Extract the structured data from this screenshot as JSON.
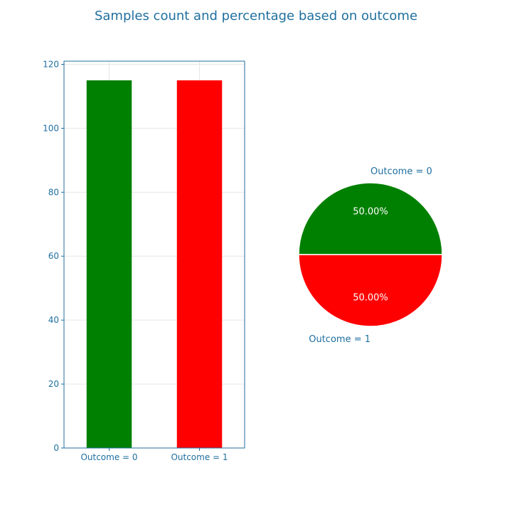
{
  "figure": {
    "title": "Samples count and percentage based on outcome",
    "text_color": "#1f6f9f",
    "grid_color": "#e6e6e6"
  },
  "chart_data": [
    {
      "type": "bar",
      "categories": [
        "Outcome = 0",
        "Outcome = 1"
      ],
      "values": [
        115,
        115
      ],
      "colors": [
        "#008000",
        "#ff0000"
      ],
      "ylim": [
        0,
        121
      ],
      "yticks": [
        0,
        20,
        40,
        60,
        80,
        100,
        120
      ],
      "grid": true
    },
    {
      "type": "pie",
      "labels": [
        "Outcome = 0",
        "Outcome = 1"
      ],
      "values": [
        50,
        50
      ],
      "pct_labels": [
        "50.00%",
        "50.00%"
      ],
      "colors": [
        "#008000",
        "#ff0000"
      ],
      "pct_color": "#ffffff"
    }
  ]
}
